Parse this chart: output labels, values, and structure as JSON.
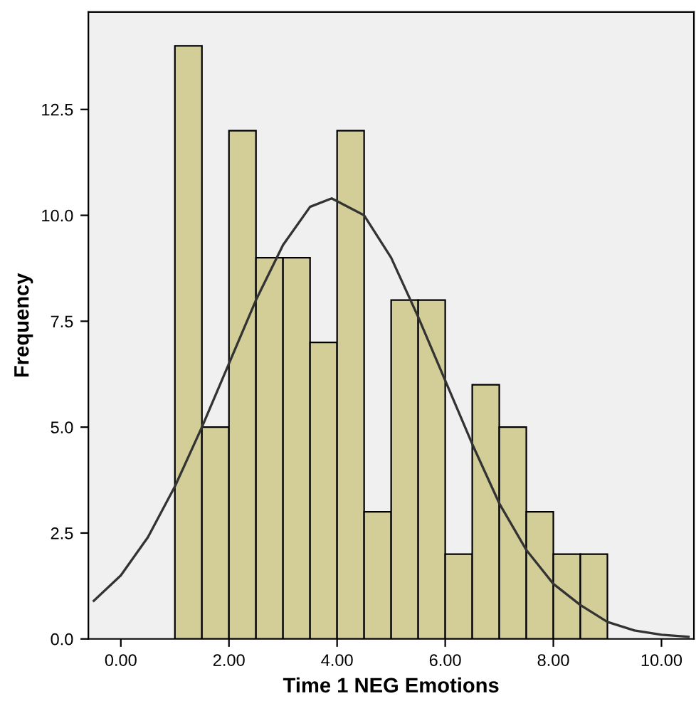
{
  "chart_data": {
    "type": "histogram",
    "xlabel": "Time 1 NEG Emotions",
    "ylabel": "Frequency",
    "bins": [
      1.0,
      1.5,
      2.0,
      2.5,
      3.0,
      3.5,
      4.0,
      4.5,
      5.0,
      5.5,
      6.0,
      6.5,
      7.0,
      7.5,
      8.0,
      8.5,
      9.0
    ],
    "values": [
      14,
      5,
      12,
      9,
      9,
      7,
      12,
      3,
      8,
      8,
      2,
      6,
      5,
      3,
      2,
      2
    ],
    "color": "#d3ce97",
    "series": [
      {
        "type": "line",
        "color": "#333333",
        "x": [
          -0.5,
          0,
          0.5,
          1,
          1.5,
          2,
          2.5,
          3,
          3.5,
          3.9,
          4.5,
          5,
          5.5,
          6,
          6.5,
          7,
          7.5,
          8,
          8.5,
          9,
          9.5,
          10,
          10.5
        ],
        "values": [
          0.9,
          1.5,
          2.4,
          3.6,
          5.0,
          6.5,
          8.0,
          9.3,
          10.2,
          10.4,
          10.0,
          9.0,
          7.6,
          6.1,
          4.6,
          3.2,
          2.1,
          1.3,
          0.8,
          0.4,
          0.2,
          0.1,
          0.05
        ]
      }
    ],
    "xlim": [
      -0.6,
      10.6
    ],
    "xticks": [
      {
        "value": 0,
        "label": "0.00"
      },
      {
        "value": 2,
        "label": "2.00"
      },
      {
        "value": 4,
        "label": "4.00"
      },
      {
        "value": 6,
        "label": "6.00"
      },
      {
        "value": 8,
        "label": "8.00"
      },
      {
        "value": 10,
        "label": "10.00"
      }
    ],
    "ylim": [
      0,
      14.8
    ],
    "yticks": [
      {
        "value": 0,
        "label": "0.0"
      },
      {
        "value": 2.5,
        "label": "2.5"
      },
      {
        "value": 5,
        "label": "5.0"
      },
      {
        "value": 7.5,
        "label": "7.5"
      },
      {
        "value": 10,
        "label": "10.0"
      },
      {
        "value": 12.5,
        "label": "12.5"
      }
    ],
    "grid": false,
    "marker": "none",
    "line_style": "solid"
  }
}
